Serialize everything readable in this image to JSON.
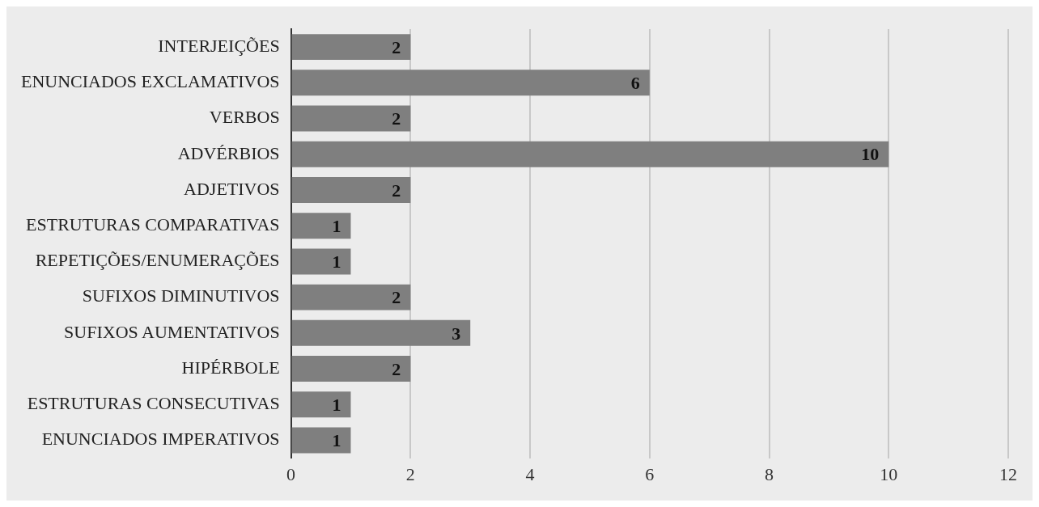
{
  "chart_data": {
    "type": "bar",
    "orientation": "horizontal",
    "categories": [
      "INTERJEIÇÕES",
      "ENUNCIADOS EXCLAMATIVOS",
      "VERBOS",
      "ADVÉRBIOS",
      "ADJETIVOS",
      "ESTRUTURAS COMPARATIVAS",
      "REPETIÇÕES/ENUMERAÇÕES",
      "SUFIXOS DIMINUTIVOS",
      "SUFIXOS AUMENTATIVOS",
      "HIPÉRBOLE",
      "ESTRUTURAS CONSECUTIVAS",
      "ENUNCIADOS IMPERATIVOS"
    ],
    "values": [
      2,
      6,
      2,
      10,
      2,
      1,
      1,
      2,
      3,
      2,
      1,
      1
    ],
    "color": "#7f7f7f",
    "xlim": [
      0,
      12
    ],
    "xticks": [
      0,
      2,
      4,
      6,
      8,
      10,
      12
    ],
    "grid": "x",
    "data_labels": true,
    "legend": false
  }
}
